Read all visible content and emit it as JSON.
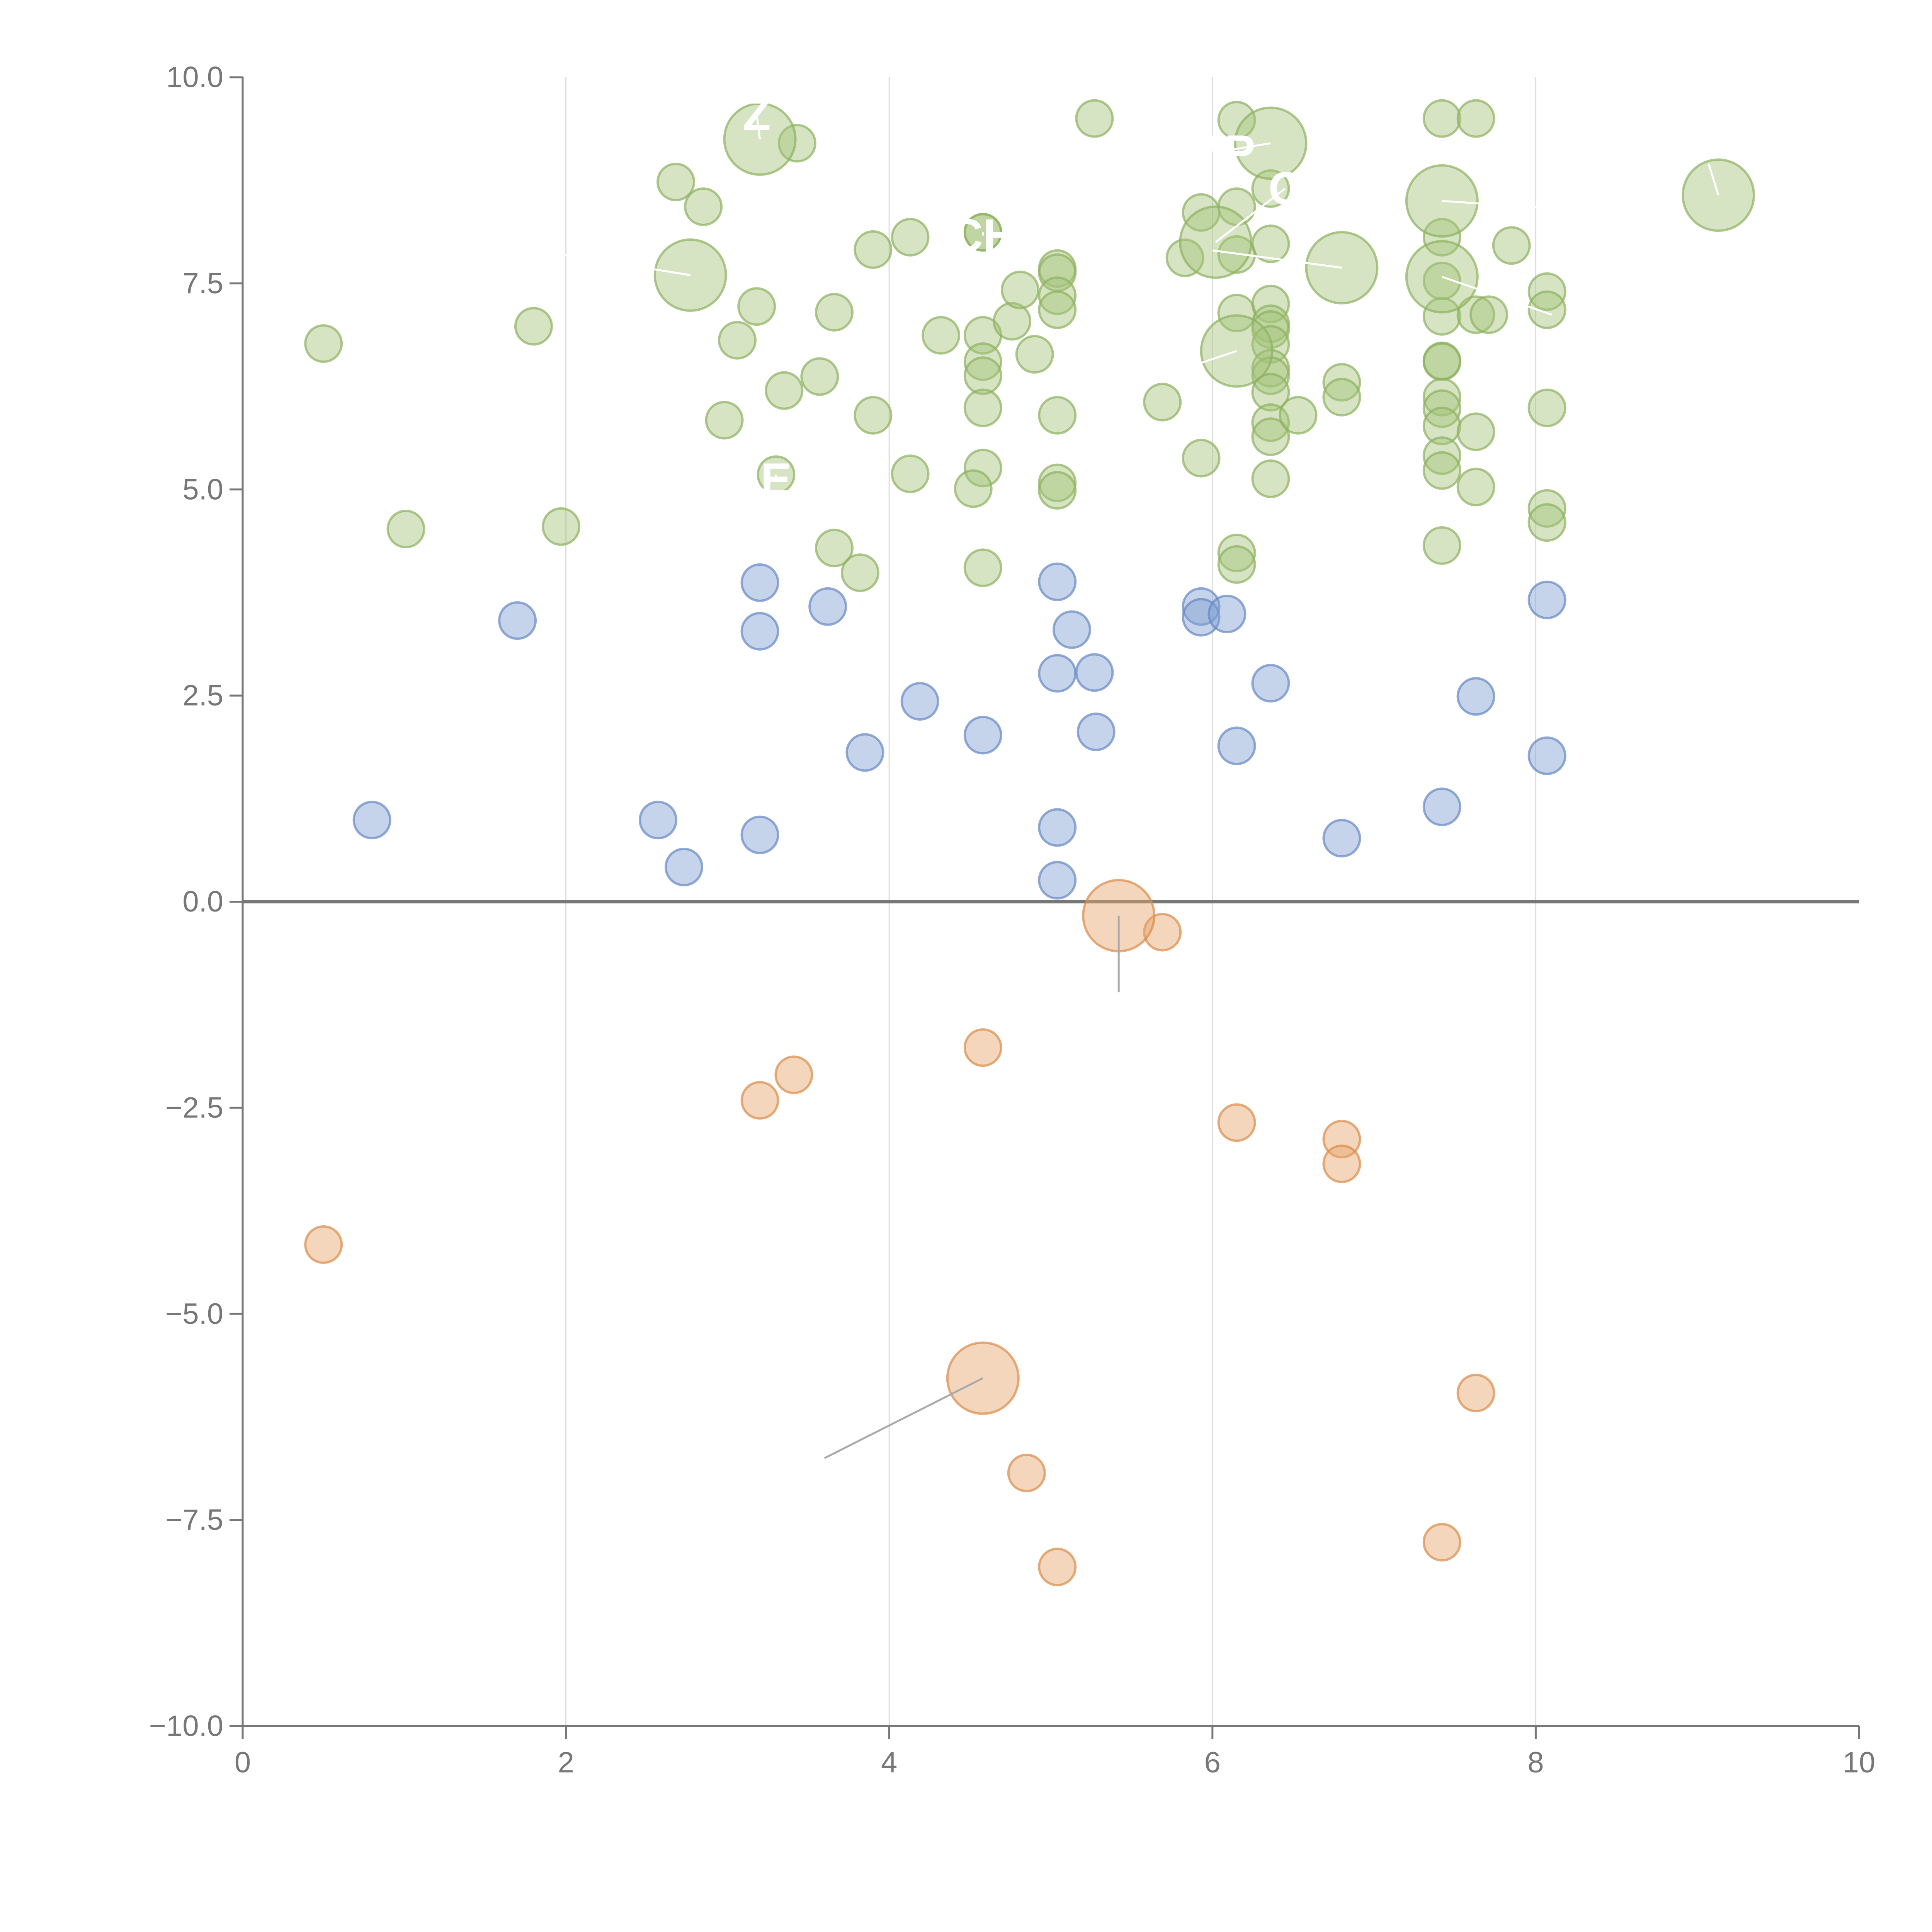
{
  "chart_data": {
    "type": "scatter",
    "title": "",
    "xlabel": "",
    "ylabel": "",
    "xlim": [
      0,
      10
    ],
    "ylim": [
      -10,
      10
    ],
    "x_ticks": [
      0,
      2,
      4,
      6,
      8,
      10
    ],
    "x_tick_labels": [
      "0",
      "2",
      "4",
      "6",
      "8",
      "10"
    ],
    "y_ticks": [
      -10,
      -7.5,
      -5,
      -2.5,
      0,
      2.5,
      5,
      7.5,
      10
    ],
    "y_tick_labels": [
      "−10.0",
      "−7.5",
      "−5.0",
      "−2.5",
      "0.0",
      "2.5",
      "5.0",
      "7.5",
      "10.0"
    ],
    "vertical_grid_at": [
      2,
      4,
      6,
      8
    ],
    "zero_line": true,
    "colors": {
      "green_fill": "#a3c47a",
      "green_stroke": "#8db15f",
      "blue_fill": "#7f9fd1",
      "blue_stroke": "#6688c4",
      "orange_fill": "#e6a36b",
      "orange_stroke": "#d98b4a",
      "axis": "#777777",
      "grid": "#dddddd",
      "leader_light": "#ffffff",
      "leader_dark": "#aaaaaa"
    },
    "series": [
      {
        "name": "green",
        "points": [
          [
            0.5,
            6.77
          ],
          [
            1.01,
            4.52
          ],
          [
            1.8,
            6.98
          ],
          [
            1.97,
            4.55
          ],
          [
            2.68,
            8.73
          ],
          [
            2.85,
            8.43
          ],
          [
            2.98,
            5.84
          ],
          [
            3.06,
            6.81
          ],
          [
            3.18,
            7.22
          ],
          [
            3.35,
            6.2
          ],
          [
            3.43,
            9.2
          ],
          [
            3.57,
            6.37
          ],
          [
            3.66,
            7.15
          ],
          [
            3.66,
            4.29
          ],
          [
            3.82,
            3.99
          ],
          [
            3.9,
            7.91
          ],
          [
            3.9,
            5.9
          ],
          [
            4.13,
            8.06
          ],
          [
            4.13,
            5.19
          ],
          [
            4.32,
            6.87
          ],
          [
            4.58,
            8.12
          ],
          [
            4.58,
            6.87
          ],
          [
            4.58,
            6.55
          ],
          [
            4.58,
            6.38
          ],
          [
            4.58,
            5.99
          ],
          [
            4.58,
            5.26
          ],
          [
            4.58,
            4.05
          ],
          [
            4.52,
            5.01
          ],
          [
            4.76,
            7.04
          ],
          [
            4.81,
            7.42
          ],
          [
            4.9,
            6.64
          ],
          [
            5.04,
            7.68
          ],
          [
            5.04,
            7.63
          ],
          [
            5.04,
            7.35
          ],
          [
            5.04,
            7.18
          ],
          [
            5.04,
            5.9
          ],
          [
            5.04,
            5.08
          ],
          [
            5.04,
            4.99
          ],
          [
            5.27,
            9.5
          ],
          [
            5.69,
            6.06
          ],
          [
            5.83,
            7.81
          ],
          [
            5.93,
            8.36
          ],
          [
            5.93,
            5.38
          ],
          [
            6.15,
            9.48
          ],
          [
            6.15,
            8.43
          ],
          [
            6.15,
            7.85
          ],
          [
            6.15,
            7.14
          ],
          [
            6.15,
            4.23
          ],
          [
            6.15,
            4.09
          ],
          [
            6.36,
            8.65
          ],
          [
            6.36,
            7.98
          ],
          [
            6.36,
            7.25
          ],
          [
            6.36,
            7.01
          ],
          [
            6.36,
            6.94
          ],
          [
            6.36,
            6.76
          ],
          [
            6.36,
            6.47
          ],
          [
            6.36,
            6.38
          ],
          [
            6.36,
            6.18
          ],
          [
            6.36,
            5.81
          ],
          [
            6.36,
            5.64
          ],
          [
            6.36,
            5.13
          ],
          [
            6.53,
            5.9
          ],
          [
            6.8,
            6.3
          ],
          [
            6.8,
            6.12
          ],
          [
            7.42,
            9.5
          ],
          [
            7.42,
            8.06
          ],
          [
            7.42,
            7.53
          ],
          [
            7.42,
            7.1
          ],
          [
            7.42,
            6.56
          ],
          [
            7.42,
            6.55
          ],
          [
            7.42,
            6.12
          ],
          [
            7.42,
            5.98
          ],
          [
            7.42,
            5.77
          ],
          [
            7.42,
            5.41
          ],
          [
            7.42,
            5.23
          ],
          [
            7.42,
            4.32
          ],
          [
            7.63,
            9.5
          ],
          [
            7.63,
            7.12
          ],
          [
            7.63,
            5.7
          ],
          [
            7.63,
            5.03
          ],
          [
            7.71,
            7.12
          ],
          [
            7.85,
            7.96
          ],
          [
            8.07,
            7.4
          ],
          [
            8.07,
            7.18
          ],
          [
            8.07,
            5.99
          ],
          [
            8.07,
            4.77
          ],
          [
            8.07,
            4.6
          ]
        ]
      },
      {
        "name": "blue",
        "points": [
          [
            0.8,
            0.99
          ],
          [
            1.7,
            3.41
          ],
          [
            2.57,
            0.99
          ],
          [
            2.73,
            0.42
          ],
          [
            3.2,
            3.87
          ],
          [
            3.2,
            3.28
          ],
          [
            3.2,
            0.81
          ],
          [
            3.62,
            3.58
          ],
          [
            3.85,
            1.81
          ],
          [
            4.19,
            2.43
          ],
          [
            4.58,
            2.02
          ],
          [
            5.04,
            3.88
          ],
          [
            5.04,
            2.77
          ],
          [
            5.04,
            0.9
          ],
          [
            5.04,
            0.26
          ],
          [
            5.13,
            3.3
          ],
          [
            5.27,
            2.78
          ],
          [
            5.28,
            2.06
          ],
          [
            5.93,
            3.58
          ],
          [
            5.93,
            3.45
          ],
          [
            6.09,
            3.49
          ],
          [
            6.15,
            1.89
          ],
          [
            6.36,
            2.65
          ],
          [
            6.8,
            0.77
          ],
          [
            7.42,
            1.15
          ],
          [
            7.63,
            2.49
          ],
          [
            8.07,
            3.66
          ],
          [
            8.07,
            1.77
          ]
        ]
      },
      {
        "name": "orange",
        "points": [
          [
            0.5,
            -4.16
          ],
          [
            3.2,
            -2.41
          ],
          [
            3.41,
            -2.1
          ],
          [
            4.58,
            -1.77
          ],
          [
            4.85,
            -6.93
          ],
          [
            5.04,
            -8.07
          ],
          [
            5.69,
            -0.37
          ],
          [
            6.15,
            -2.68
          ],
          [
            6.8,
            -2.88
          ],
          [
            6.8,
            -3.18
          ],
          [
            7.42,
            -7.77
          ],
          [
            7.63,
            -5.96
          ]
        ]
      }
    ],
    "highlighted": [
      {
        "series": "green",
        "x": 3.2,
        "y": 9.25,
        "size": "large",
        "label": "Z",
        "label_x": 3.18,
        "label_y": 9.55
      },
      {
        "series": "green",
        "x": 2.77,
        "y": 7.6,
        "size": "large",
        "label": "",
        "label_x": 1.98,
        "label_y": 7.85
      },
      {
        "series": "green",
        "x": 6.36,
        "y": 9.2,
        "size": "large",
        "label": "MP",
        "label_x": 6.05,
        "label_y": 9.1
      },
      {
        "series": "green",
        "x": 6.02,
        "y": 8.0,
        "size": "large",
        "label": "C",
        "label_x": 6.45,
        "label_y": 8.65
      },
      {
        "series": "green",
        "x": 6.8,
        "y": 7.69,
        "size": "large",
        "label": "",
        "label_x": 6.0,
        "label_y": 7.9
      },
      {
        "series": "green",
        "x": 6.15,
        "y": 6.68,
        "size": "large",
        "label": "",
        "label_x": 5.8,
        "label_y": 6.45
      },
      {
        "series": "green",
        "x": 7.42,
        "y": 8.5,
        "size": "large",
        "label": "",
        "label_x": 8.02,
        "label_y": 8.42
      },
      {
        "series": "green",
        "x": 7.42,
        "y": 7.58,
        "size": "large",
        "label": "",
        "label_x": 8.1,
        "label_y": 7.12
      },
      {
        "series": "green",
        "x": 9.13,
        "y": 8.57,
        "size": "large",
        "label": "",
        "label_x": 9.07,
        "label_y": 8.95
      },
      {
        "series": "green",
        "x": 4.58,
        "y": 8.12,
        "size": "small",
        "label": "CH",
        "label_x": 4.58,
        "label_y": 8.08
      },
      {
        "series": "green",
        "x": 3.3,
        "y": 5.18,
        "size": "small",
        "label": "E",
        "label_x": 3.3,
        "label_y": 5.12
      },
      {
        "series": "orange",
        "x": 5.42,
        "y": -0.17,
        "size": "large",
        "label": "",
        "label_x": 5.42,
        "label_y": -1.1
      },
      {
        "series": "orange",
        "x": 4.58,
        "y": -5.78,
        "size": "large",
        "label": "",
        "label_x": 3.6,
        "label_y": -6.75
      }
    ]
  }
}
